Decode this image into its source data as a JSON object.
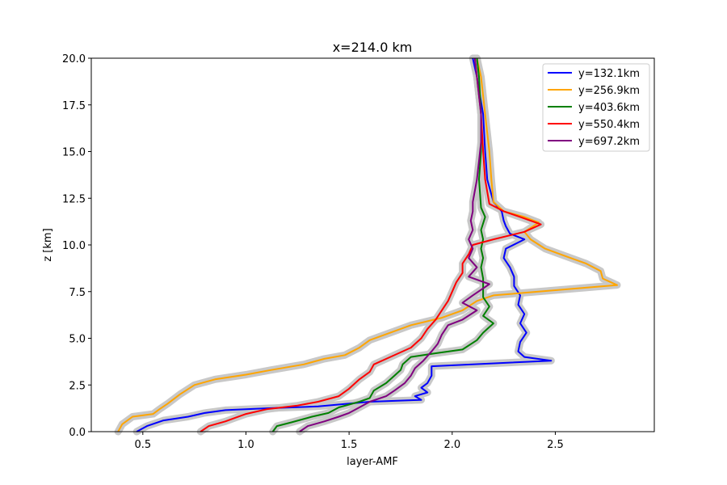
{
  "chart_data": {
    "type": "line",
    "title": "x=214.0 km",
    "xlabel": "layer-AMF",
    "ylabel": "z [km]",
    "xlim": [
      0.25,
      2.98
    ],
    "ylim": [
      0,
      20
    ],
    "xticks": [
      0.5,
      1.0,
      1.5,
      2.0,
      2.5
    ],
    "xtick_labels": [
      "0.5",
      "1.0",
      "1.5",
      "2.0",
      "2.5"
    ],
    "yticks": [
      0,
      2.5,
      5,
      7.5,
      10,
      12.5,
      15,
      17.5,
      20
    ],
    "ytick_labels": [
      "0.0",
      "2.5",
      "5.0",
      "7.5",
      "10.0",
      "12.5",
      "15.0",
      "17.5",
      "20.0"
    ],
    "grid": false,
    "legend_position": "top-right",
    "uncertainty_band_color": "#c8c8c8",
    "series": [
      {
        "name": "y=132.1km",
        "color": "#0000ff",
        "points": [
          [
            0.47,
            0.0
          ],
          [
            0.52,
            0.3
          ],
          [
            0.6,
            0.6
          ],
          [
            0.72,
            0.8
          ],
          [
            0.8,
            1.0
          ],
          [
            0.9,
            1.15
          ],
          [
            1.1,
            1.25
          ],
          [
            1.35,
            1.35
          ],
          [
            1.6,
            1.6
          ],
          [
            1.85,
            1.7
          ],
          [
            1.82,
            1.9
          ],
          [
            1.88,
            2.1
          ],
          [
            1.85,
            2.35
          ],
          [
            1.88,
            2.6
          ],
          [
            1.9,
            3.0
          ],
          [
            1.9,
            3.5
          ],
          [
            2.48,
            3.8
          ],
          [
            2.35,
            4.0
          ],
          [
            2.32,
            4.3
          ],
          [
            2.33,
            4.8
          ],
          [
            2.36,
            5.3
          ],
          [
            2.33,
            5.8
          ],
          [
            2.35,
            6.3
          ],
          [
            2.32,
            6.8
          ],
          [
            2.33,
            7.3
          ],
          [
            2.3,
            7.8
          ],
          [
            2.3,
            8.3
          ],
          [
            2.28,
            8.8
          ],
          [
            2.25,
            9.3
          ],
          [
            2.26,
            9.8
          ],
          [
            2.35,
            10.3
          ],
          [
            2.28,
            10.6
          ],
          [
            2.26,
            11.0
          ],
          [
            2.25,
            11.3
          ],
          [
            2.24,
            11.8
          ],
          [
            2.2,
            12.3
          ],
          [
            2.17,
            13.5
          ],
          [
            2.16,
            15.0
          ],
          [
            2.15,
            17.0
          ],
          [
            2.12,
            19.0
          ],
          [
            2.1,
            20.0
          ]
        ]
      },
      {
        "name": "y=256.9km",
        "color": "#ffa500",
        "points": [
          [
            0.38,
            0.0
          ],
          [
            0.4,
            0.4
          ],
          [
            0.45,
            0.8
          ],
          [
            0.55,
            0.95
          ],
          [
            0.58,
            1.2
          ],
          [
            0.62,
            1.5
          ],
          [
            0.68,
            2.0
          ],
          [
            0.75,
            2.5
          ],
          [
            0.85,
            2.8
          ],
          [
            1.0,
            3.05
          ],
          [
            1.12,
            3.3
          ],
          [
            1.28,
            3.6
          ],
          [
            1.38,
            3.9
          ],
          [
            1.48,
            4.1
          ],
          [
            1.55,
            4.5
          ],
          [
            1.6,
            4.9
          ],
          [
            1.7,
            5.3
          ],
          [
            1.8,
            5.7
          ],
          [
            1.95,
            6.1
          ],
          [
            2.05,
            6.5
          ],
          [
            2.12,
            7.0
          ],
          [
            2.2,
            7.3
          ],
          [
            2.8,
            7.85
          ],
          [
            2.73,
            8.2
          ],
          [
            2.72,
            8.6
          ],
          [
            2.65,
            9.0
          ],
          [
            2.55,
            9.4
          ],
          [
            2.45,
            9.8
          ],
          [
            2.38,
            10.3
          ],
          [
            2.35,
            10.7
          ],
          [
            2.42,
            11.2
          ],
          [
            2.35,
            11.5
          ],
          [
            2.25,
            11.8
          ],
          [
            2.2,
            12.3
          ],
          [
            2.19,
            13.5
          ],
          [
            2.18,
            15.0
          ],
          [
            2.16,
            17.0
          ],
          [
            2.14,
            19.0
          ],
          [
            2.12,
            20.0
          ]
        ]
      },
      {
        "name": "y=403.6km",
        "color": "#008000",
        "points": [
          [
            1.13,
            0.0
          ],
          [
            1.15,
            0.3
          ],
          [
            1.22,
            0.5
          ],
          [
            1.32,
            0.8
          ],
          [
            1.4,
            1.0
          ],
          [
            1.45,
            1.3
          ],
          [
            1.55,
            1.6
          ],
          [
            1.6,
            1.8
          ],
          [
            1.62,
            2.2
          ],
          [
            1.68,
            2.6
          ],
          [
            1.72,
            3.0
          ],
          [
            1.75,
            3.3
          ],
          [
            1.76,
            3.6
          ],
          [
            1.8,
            4.0
          ],
          [
            1.92,
            4.2
          ],
          [
            2.05,
            4.4
          ],
          [
            2.12,
            4.9
          ],
          [
            2.15,
            5.3
          ],
          [
            2.2,
            5.8
          ],
          [
            2.15,
            6.2
          ],
          [
            2.18,
            6.7
          ],
          [
            2.15,
            7.2
          ],
          [
            2.15,
            7.7
          ],
          [
            2.15,
            8.2
          ],
          [
            2.14,
            8.8
          ],
          [
            2.15,
            9.3
          ],
          [
            2.14,
            9.8
          ],
          [
            2.15,
            10.3
          ],
          [
            2.14,
            10.8
          ],
          [
            2.16,
            11.5
          ],
          [
            2.14,
            12.0
          ],
          [
            2.13,
            13.5
          ],
          [
            2.14,
            15.0
          ],
          [
            2.14,
            17.0
          ],
          [
            2.13,
            19.0
          ],
          [
            2.12,
            20.0
          ]
        ]
      },
      {
        "name": "y=550.4km",
        "color": "#ff0000",
        "points": [
          [
            0.78,
            0.0
          ],
          [
            0.82,
            0.3
          ],
          [
            0.9,
            0.55
          ],
          [
            0.95,
            0.75
          ],
          [
            1.0,
            0.95
          ],
          [
            1.1,
            1.2
          ],
          [
            1.25,
            1.4
          ],
          [
            1.35,
            1.6
          ],
          [
            1.45,
            1.9
          ],
          [
            1.5,
            2.3
          ],
          [
            1.55,
            2.8
          ],
          [
            1.6,
            3.2
          ],
          [
            1.62,
            3.6
          ],
          [
            1.7,
            4.0
          ],
          [
            1.8,
            4.5
          ],
          [
            1.85,
            5.0
          ],
          [
            1.88,
            5.5
          ],
          [
            1.92,
            6.0
          ],
          [
            1.95,
            6.5
          ],
          [
            1.98,
            7.0
          ],
          [
            2.0,
            7.5
          ],
          [
            2.02,
            8.0
          ],
          [
            2.05,
            8.5
          ],
          [
            2.05,
            9.0
          ],
          [
            2.08,
            9.5
          ],
          [
            2.1,
            10.0
          ],
          [
            2.2,
            10.3
          ],
          [
            2.35,
            10.7
          ],
          [
            2.43,
            11.1
          ],
          [
            2.33,
            11.5
          ],
          [
            2.25,
            11.8
          ],
          [
            2.18,
            12.2
          ],
          [
            2.16,
            13.5
          ],
          [
            2.15,
            15.0
          ],
          [
            2.14,
            17.0
          ],
          [
            2.12,
            19.0
          ],
          [
            2.11,
            20.0
          ]
        ]
      },
      {
        "name": "y=697.2km",
        "color": "#800080",
        "points": [
          [
            1.26,
            0.0
          ],
          [
            1.3,
            0.3
          ],
          [
            1.38,
            0.55
          ],
          [
            1.45,
            0.8
          ],
          [
            1.5,
            1.0
          ],
          [
            1.55,
            1.3
          ],
          [
            1.6,
            1.6
          ],
          [
            1.68,
            1.9
          ],
          [
            1.72,
            2.2
          ],
          [
            1.77,
            2.6
          ],
          [
            1.8,
            3.0
          ],
          [
            1.82,
            3.4
          ],
          [
            1.86,
            3.8
          ],
          [
            1.9,
            4.3
          ],
          [
            1.93,
            4.7
          ],
          [
            1.95,
            5.2
          ],
          [
            1.98,
            5.7
          ],
          [
            2.05,
            6.0
          ],
          [
            2.12,
            6.5
          ],
          [
            2.05,
            6.9
          ],
          [
            2.1,
            7.3
          ],
          [
            2.18,
            7.9
          ],
          [
            2.08,
            8.3
          ],
          [
            2.12,
            8.8
          ],
          [
            2.08,
            9.3
          ],
          [
            2.1,
            9.8
          ],
          [
            2.08,
            10.3
          ],
          [
            2.1,
            10.8
          ],
          [
            2.09,
            11.3
          ],
          [
            2.1,
            11.8
          ],
          [
            2.1,
            12.3
          ],
          [
            2.12,
            13.5
          ],
          [
            2.13,
            14.5
          ],
          [
            2.14,
            15.5
          ],
          [
            2.14,
            17.0
          ],
          [
            2.12,
            19.0
          ],
          [
            2.11,
            20.0
          ]
        ]
      }
    ]
  }
}
